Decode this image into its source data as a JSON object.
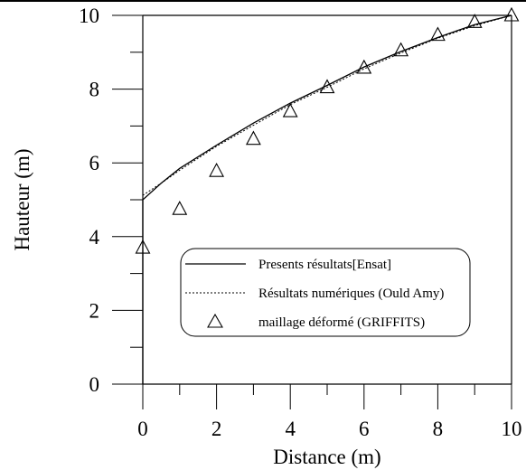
{
  "chart_data": {
    "type": "line",
    "title": "",
    "xlabel": "Distance (m)",
    "ylabel": "Hauteur (m)",
    "xlim": [
      0,
      10
    ],
    "ylim": [
      0,
      10
    ],
    "xticks": [
      0,
      2,
      4,
      6,
      8,
      10
    ],
    "yticks": [
      0,
      2,
      4,
      6,
      8,
      10
    ],
    "xtick_labels": [
      "0",
      "2",
      "4",
      "6",
      "8",
      "10"
    ],
    "ytick_labels": [
      "0",
      "2",
      "4",
      "6",
      "8",
      "10"
    ],
    "grid": false,
    "legend_position": "lower-right",
    "series": [
      {
        "name": "Presents résultats[Ensat]",
        "style": "solid",
        "x": [
          0,
          0,
          0.5,
          1,
          2,
          3,
          4,
          5,
          6,
          7,
          8,
          9,
          10
        ],
        "y": [
          0,
          5.0,
          5.45,
          5.85,
          6.48,
          7.08,
          7.62,
          8.1,
          8.6,
          9.02,
          9.4,
          9.75,
          10.0
        ]
      },
      {
        "name": "Résultats numériques (Ould Amy)",
        "style": "dotted",
        "x": [
          0,
          0.5,
          1,
          2,
          3,
          4,
          5,
          6,
          7,
          8,
          9,
          10
        ],
        "y": [
          5.12,
          5.45,
          5.8,
          6.45,
          7.02,
          7.58,
          8.05,
          8.55,
          8.98,
          9.38,
          9.72,
          10.0
        ]
      },
      {
        "name": "maillage déformé (GRIFFITS)",
        "style": "triangle-markers",
        "x": [
          0,
          1,
          2,
          3,
          4,
          5,
          6,
          7,
          8,
          9,
          10
        ],
        "y": [
          3.7,
          4.75,
          5.78,
          6.65,
          7.4,
          8.05,
          8.58,
          9.05,
          9.47,
          9.82,
          10.0
        ]
      }
    ]
  }
}
